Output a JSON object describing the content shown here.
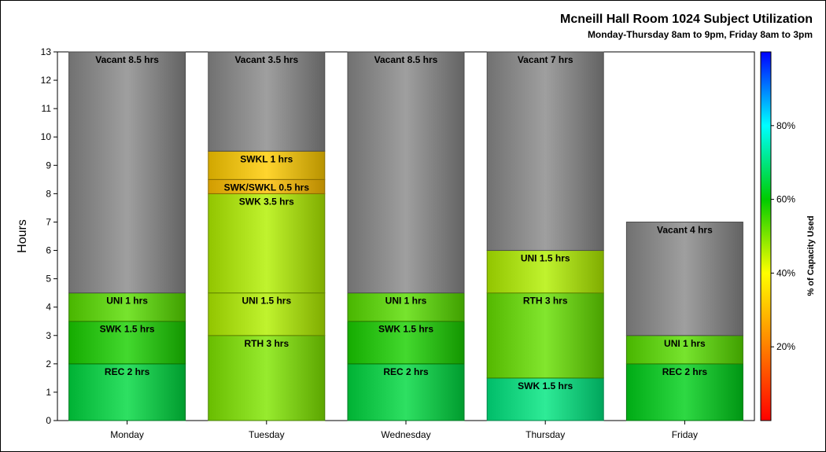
{
  "chart_data": {
    "type": "bar",
    "stacked": true,
    "title": "Mcneill Hall Room 1024 Subject Utilization",
    "subtitle": "Monday-Thursday 8am to 9pm, Friday 8am to 3pm",
    "ylabel": "Hours",
    "ylim": [
      0,
      13
    ],
    "yticks": [
      "0",
      "1",
      "2",
      "3",
      "4",
      "5",
      "6",
      "7",
      "8",
      "9",
      "10",
      "11",
      "12",
      "13"
    ],
    "categories": [
      "Monday",
      "Tuesday",
      "Wednesday",
      "Thursday",
      "Friday"
    ],
    "bars": [
      {
        "category": "Monday",
        "segments": [
          {
            "label": "REC 2 hrs",
            "hours": 2,
            "capacity_pct": 65
          },
          {
            "label": "SWK 1.5 hrs",
            "hours": 1.5,
            "capacity_pct": 58
          },
          {
            "label": "UNI 1 hrs",
            "hours": 1,
            "capacity_pct": 53
          },
          {
            "label": "Vacant 8.5 hrs",
            "hours": 8.5,
            "capacity_pct": null
          }
        ]
      },
      {
        "category": "Tuesday",
        "segments": [
          {
            "label": "RTH 3 hrs",
            "hours": 3,
            "capacity_pct": 50
          },
          {
            "label": "UNI 1.5 hrs",
            "hours": 1.5,
            "capacity_pct": 46
          },
          {
            "label": "SWK 3.5 hrs",
            "hours": 3.5,
            "capacity_pct": 46
          },
          {
            "label": "SWK/SWKL 0.5 hrs",
            "hours": 0.5,
            "capacity_pct": 30
          },
          {
            "label": "SWKL 1 hrs",
            "hours": 1,
            "capacity_pct": 32
          },
          {
            "label": "Vacant 3.5 hrs",
            "hours": 3.5,
            "capacity_pct": null
          }
        ]
      },
      {
        "category": "Wednesday",
        "segments": [
          {
            "label": "REC 2 hrs",
            "hours": 2,
            "capacity_pct": 65
          },
          {
            "label": "SWK 1.5 hrs",
            "hours": 1.5,
            "capacity_pct": 58
          },
          {
            "label": "UNI 1 hrs",
            "hours": 1,
            "capacity_pct": 53
          },
          {
            "label": "Vacant 8.5 hrs",
            "hours": 8.5,
            "capacity_pct": null
          }
        ]
      },
      {
        "category": "Thursday",
        "segments": [
          {
            "label": "SWK 1.5 hrs",
            "hours": 1.5,
            "capacity_pct": 70
          },
          {
            "label": "RTH 3 hrs",
            "hours": 3,
            "capacity_pct": 52
          },
          {
            "label": "UNI 1.5 hrs",
            "hours": 1.5,
            "capacity_pct": 46
          },
          {
            "label": "Vacant 7 hrs",
            "hours": 7,
            "capacity_pct": null
          }
        ]
      },
      {
        "category": "Friday",
        "segments": [
          {
            "label": "REC 2 hrs",
            "hours": 2,
            "capacity_pct": 62
          },
          {
            "label": "UNI 1 hrs",
            "hours": 1,
            "capacity_pct": 53
          },
          {
            "label": "Vacant 4 hrs",
            "hours": 4,
            "capacity_pct": null
          }
        ]
      }
    ],
    "colorbar": {
      "label": "% of Capacity Used",
      "range": [
        0,
        100
      ],
      "ticks": [
        {
          "value": 20,
          "label": "20%"
        },
        {
          "value": 40,
          "label": "40%"
        },
        {
          "value": 60,
          "label": "60%"
        },
        {
          "value": 80,
          "label": "80%"
        }
      ],
      "stops": [
        "#ff0000",
        "#ff7f00",
        "#ffff00",
        "#00cc00",
        "#00ffff",
        "#0000ff"
      ]
    },
    "vacant_color": "#8a8a8a",
    "grid": false,
    "legend": "right"
  }
}
